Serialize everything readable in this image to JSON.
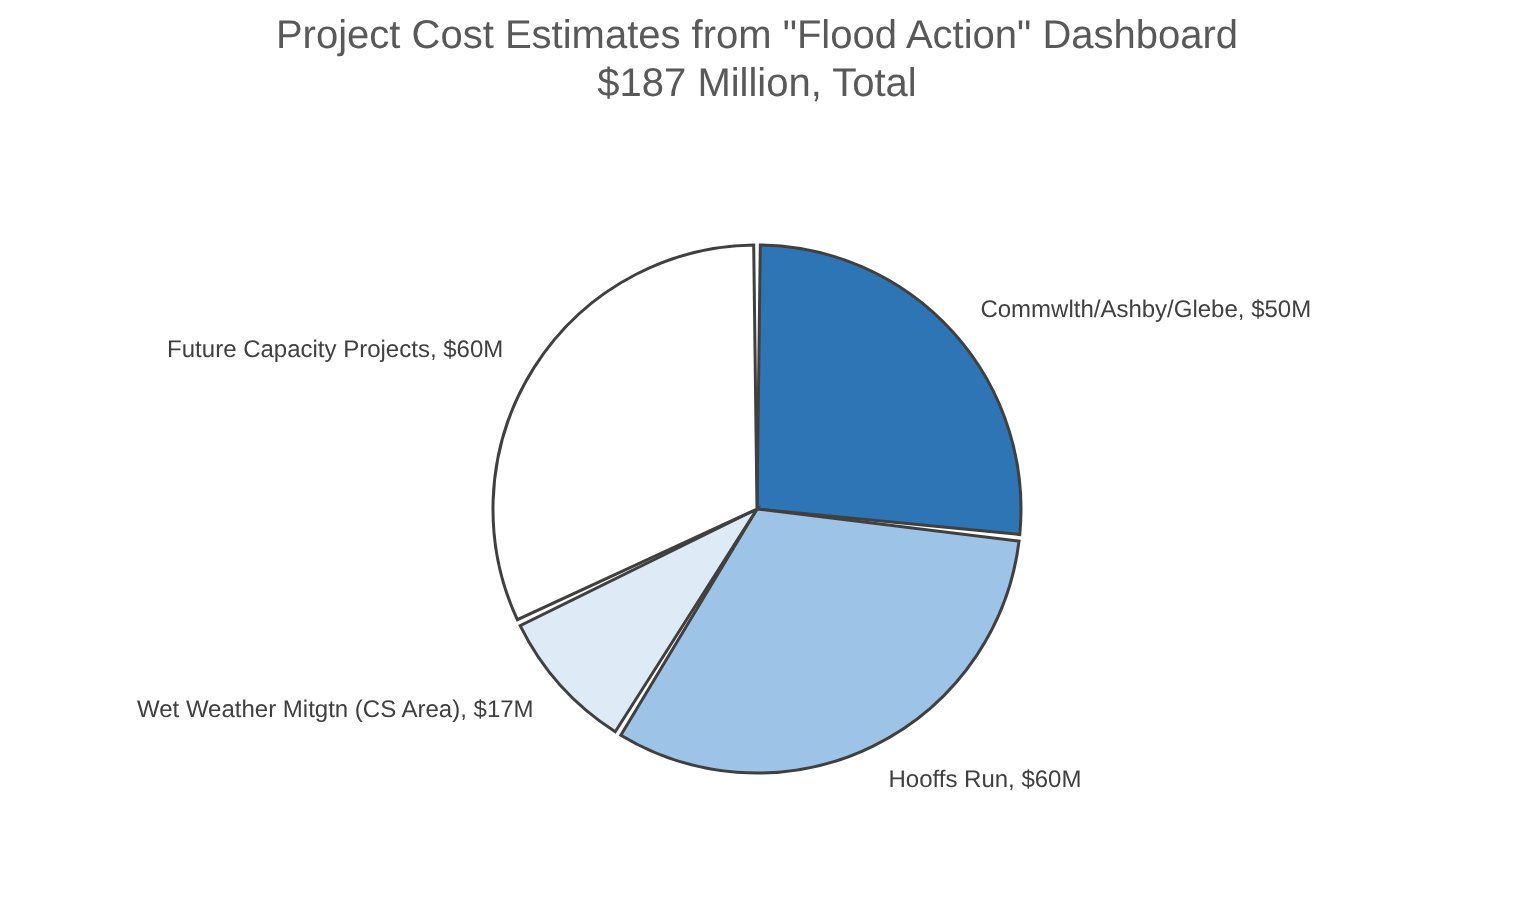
{
  "chart_data": {
    "type": "pie",
    "title": "Project Cost Estimates from \"Flood Action\" Dashboard",
    "subtitle": "$187 Million, Total",
    "categories": [
      "Commwlth/Ashby/Glebe",
      "Hooffs Run",
      "Wet Weather Mitgtn (CS Area)",
      "Future Capacity Projects"
    ],
    "values": [
      50,
      60,
      17,
      60
    ],
    "colors": [
      "#2e75b6",
      "#9dc3e6",
      "#deebf7",
      "#ffffff"
    ],
    "value_labels": [
      "$50M",
      "$60M",
      "$17M",
      "$60M"
    ]
  }
}
